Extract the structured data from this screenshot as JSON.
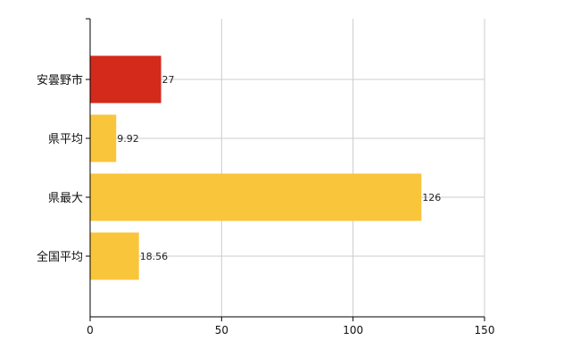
{
  "chart_data": {
    "type": "bar",
    "orientation": "horizontal",
    "categories": [
      "安曇野市",
      "県平均",
      "県最大",
      "全国平均"
    ],
    "values": [
      27,
      9.92,
      126,
      18.56
    ],
    "value_labels": [
      "27",
      "9.92",
      "126",
      "18.56"
    ],
    "bar_colors": [
      "#d42a1c",
      "#f9c53b",
      "#f9c53b",
      "#f9c53b"
    ],
    "xlim": [
      0,
      150
    ],
    "x_ticks": [
      0,
      50,
      100,
      150
    ],
    "x_tick_labels": [
      "0",
      "50",
      "100",
      "150"
    ],
    "grid": true,
    "gridline_color": "#cccccc"
  }
}
